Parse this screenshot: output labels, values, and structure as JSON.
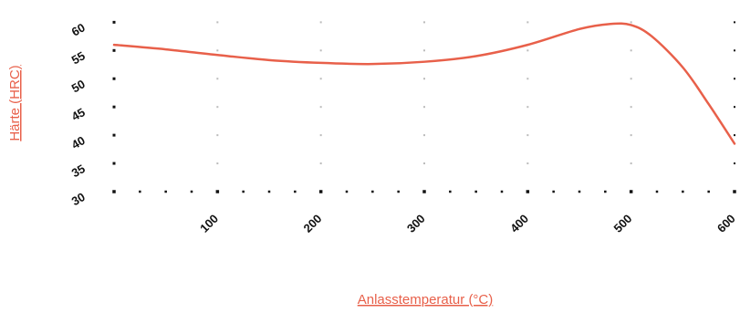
{
  "chart_data": {
    "type": "line",
    "title": "",
    "xlabel": "Anlasstemperatur (°C)",
    "ylabel": "Härte (HRC)",
    "xlim": [
      0,
      600
    ],
    "ylim": [
      30,
      62
    ],
    "x_ticks": [
      "100",
      "200",
      "300",
      "400",
      "500",
      "600"
    ],
    "y_ticks": [
      "30",
      "35",
      "40",
      "45",
      "50",
      "55",
      "60"
    ],
    "grid": "dotted",
    "legend": "none",
    "series": [
      {
        "color": "#e8604a",
        "x": [
          0,
          50,
          100,
          150,
          200,
          250,
          300,
          350,
          400,
          450,
          480,
          500,
          520,
          550,
          575,
          600
        ],
        "y": [
          56,
          55.2,
          54.2,
          53.3,
          52.8,
          52.6,
          53.0,
          54.0,
          56.0,
          58.8,
          59.7,
          59.5,
          57.5,
          52.0,
          45.5,
          38.5
        ]
      }
    ],
    "colors": {
      "line": "#e8604a",
      "axis_title": "#e8604a",
      "tick_label": "#111111",
      "grid_dot": "#bbbbbb",
      "axis_dot": "#111111"
    }
  }
}
